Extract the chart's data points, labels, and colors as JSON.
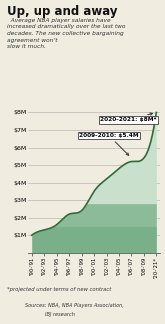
{
  "title": "Up, up and away",
  "subtitle": "  Average NBA player salaries have\nincreased dramatically over the last two\ndecades. The new collective bargaining\nagreement won’t\nslow it much.",
  "years": [
    "'90-'91",
    "'92-'93",
    "'94-'95",
    "'96-'97",
    "'98-'99",
    "'00-'01",
    "'02-'03",
    "'04-'05",
    "'06-'07",
    "'08-'09",
    "'20-'21*"
  ],
  "values": [
    1.0,
    1.3,
    1.6,
    2.2,
    2.4,
    3.5,
    4.2,
    4.8,
    5.2,
    5.4,
    8.0
  ],
  "xlabel_note": "*projected under terms of new contract",
  "sources": "Sources: NBA, NBA Players Association,\n                    IBJ research",
  "annotation1_text": "2009-2010: $5.4M",
  "annotation2_text": "2020-2021: $8M*",
  "fill_color_light": "#c8e0cc",
  "fill_color_dark": "#5a9e6e",
  "line_color": "#2d6b3c",
  "background_color": "#f0ede0",
  "text_color": "#222222",
  "ylim": [
    0,
    8.5
  ],
  "yticks": [
    1,
    2,
    3,
    4,
    5,
    6,
    7,
    8
  ],
  "ytick_labels": [
    "$1M",
    "$2M",
    "$3M",
    "$4M",
    "$5M",
    "$6M",
    "$7M",
    "$8M"
  ]
}
